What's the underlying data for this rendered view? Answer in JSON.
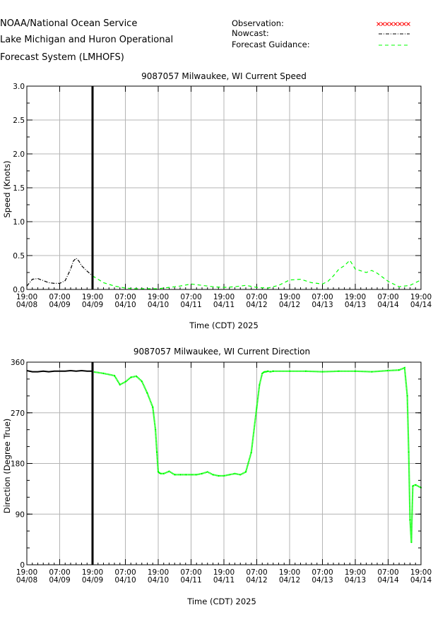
{
  "header": {
    "agency": "NOAA/National Ocean Service",
    "system_line1": "Lake Michigan and Huron Operational",
    "system_line2": "Forecast System (LMHOFS)"
  },
  "legend": {
    "observation": "Observation:",
    "nowcast": "Nowcast:",
    "forecast": "Forecast Guidance:",
    "colors": {
      "observation": "#ff0000",
      "nowcast": "#000000",
      "forecast": "#00ff00"
    }
  },
  "chart_data": [
    {
      "type": "line",
      "title": "9087057 Milwaukee, WI Current Speed",
      "xlabel": "Time (CDT) 2025",
      "ylabel": "Speed (Knots)",
      "ylim": [
        0,
        3.0
      ],
      "yticks": [
        "0.0",
        "0.5",
        "1.0",
        "1.5",
        "2.0",
        "2.5",
        "3.0"
      ],
      "xlim_hours": [
        0,
        144
      ],
      "xticks": [
        {
          "time": "19:00",
          "date": "04/08"
        },
        {
          "time": "07:00",
          "date": "04/09"
        },
        {
          "time": "19:00",
          "date": "04/09"
        },
        {
          "time": "07:00",
          "date": "04/10"
        },
        {
          "time": "19:00",
          "date": "04/10"
        },
        {
          "time": "07:00",
          "date": "04/11"
        },
        {
          "time": "19:00",
          "date": "04/11"
        },
        {
          "time": "07:00",
          "date": "04/12"
        },
        {
          "time": "19:00",
          "date": "04/12"
        },
        {
          "time": "07:00",
          "date": "04/13"
        },
        {
          "time": "19:00",
          "date": "04/13"
        },
        {
          "time": "07:00",
          "date": "04/14"
        },
        {
          "time": "19:00",
          "date": "04/14"
        }
      ],
      "grid": true,
      "nowcast_end_hour": 24,
      "series": [
        {
          "name": "Nowcast",
          "style": "dash-dot",
          "color": "#000000",
          "hours": [
            0,
            2,
            4,
            6,
            8,
            10,
            12,
            14,
            16,
            17,
            18,
            19,
            20,
            22,
            24
          ],
          "values": [
            0.05,
            0.15,
            0.16,
            0.13,
            0.1,
            0.09,
            0.09,
            0.13,
            0.3,
            0.42,
            0.46,
            0.42,
            0.35,
            0.27,
            0.2
          ]
        },
        {
          "name": "Forecast Guidance",
          "style": "dashed",
          "color": "#00ff00",
          "hours": [
            24,
            28,
            32,
            36,
            40,
            44,
            48,
            52,
            56,
            60,
            64,
            68,
            72,
            76,
            80,
            84,
            88,
            92,
            96,
            100,
            104,
            108,
            110,
            112,
            114,
            116,
            118,
            120,
            124,
            126,
            128,
            132,
            136,
            140,
            144
          ],
          "values": [
            0.2,
            0.1,
            0.05,
            0.02,
            0.01,
            0.01,
            0.01,
            0.03,
            0.05,
            0.08,
            0.06,
            0.04,
            0.03,
            0.04,
            0.06,
            0.03,
            0.02,
            0.06,
            0.14,
            0.15,
            0.1,
            0.08,
            0.12,
            0.2,
            0.3,
            0.35,
            0.43,
            0.3,
            0.25,
            0.28,
            0.24,
            0.12,
            0.04,
            0.06,
            0.14
          ]
        }
      ]
    },
    {
      "type": "line",
      "title": "9087057 Milwaukee, WI Current Direction",
      "xlabel": "Time (CDT) 2025",
      "ylabel": "Direction (Degree True)",
      "ylim": [
        0,
        360
      ],
      "yticks": [
        "0",
        "90",
        "180",
        "270",
        "360"
      ],
      "xlim_hours": [
        0,
        144
      ],
      "xticks": [
        {
          "time": "19:00",
          "date": "04/08"
        },
        {
          "time": "07:00",
          "date": "04/09"
        },
        {
          "time": "19:00",
          "date": "04/09"
        },
        {
          "time": "07:00",
          "date": "04/10"
        },
        {
          "time": "19:00",
          "date": "04/10"
        },
        {
          "time": "07:00",
          "date": "04/11"
        },
        {
          "time": "19:00",
          "date": "04/11"
        },
        {
          "time": "07:00",
          "date": "04/12"
        },
        {
          "time": "19:00",
          "date": "04/12"
        },
        {
          "time": "07:00",
          "date": "04/13"
        },
        {
          "time": "19:00",
          "date": "04/13"
        },
        {
          "time": "07:00",
          "date": "04/14"
        },
        {
          "time": "19:00",
          "date": "04/14"
        }
      ],
      "grid": true,
      "nowcast_end_hour": 24,
      "series": [
        {
          "name": "Nowcast",
          "style": "solid",
          "color": "#000000",
          "hours": [
            0,
            2,
            4,
            6,
            8,
            10,
            12,
            14,
            16,
            18,
            20,
            22,
            24
          ],
          "values": [
            345,
            343,
            343,
            344,
            343,
            344,
            344,
            344,
            345,
            344,
            345,
            344,
            344
          ]
        },
        {
          "name": "Forecast Guidance",
          "style": "dotted",
          "color": "#00ff00",
          "hours": [
            24,
            28,
            32,
            34,
            36,
            38,
            40,
            42,
            44,
            46,
            47,
            47.5,
            48,
            48.5,
            49,
            50,
            52,
            54,
            56,
            58,
            60,
            62,
            64,
            66,
            68,
            70,
            72,
            74,
            76,
            78,
            80,
            82,
            84,
            85,
            86,
            86.5,
            87,
            87.5,
            88,
            89,
            90,
            96,
            102,
            108,
            114,
            120,
            126,
            132,
            136,
            138,
            139,
            139.5,
            140,
            140.5,
            141,
            142,
            144
          ],
          "values": [
            343,
            340,
            336,
            320,
            325,
            333,
            335,
            326,
            305,
            280,
            240,
            200,
            165,
            163,
            162,
            162,
            166,
            160,
            160,
            160,
            160,
            160,
            162,
            165,
            160,
            158,
            158,
            160,
            162,
            160,
            165,
            200,
            280,
            320,
            340,
            342,
            343,
            343,
            344,
            343,
            344,
            344,
            344,
            343,
            344,
            344,
            343,
            345,
            346,
            350,
            300,
            200,
            80,
            40,
            140,
            142,
            137
          ]
        }
      ]
    }
  ]
}
